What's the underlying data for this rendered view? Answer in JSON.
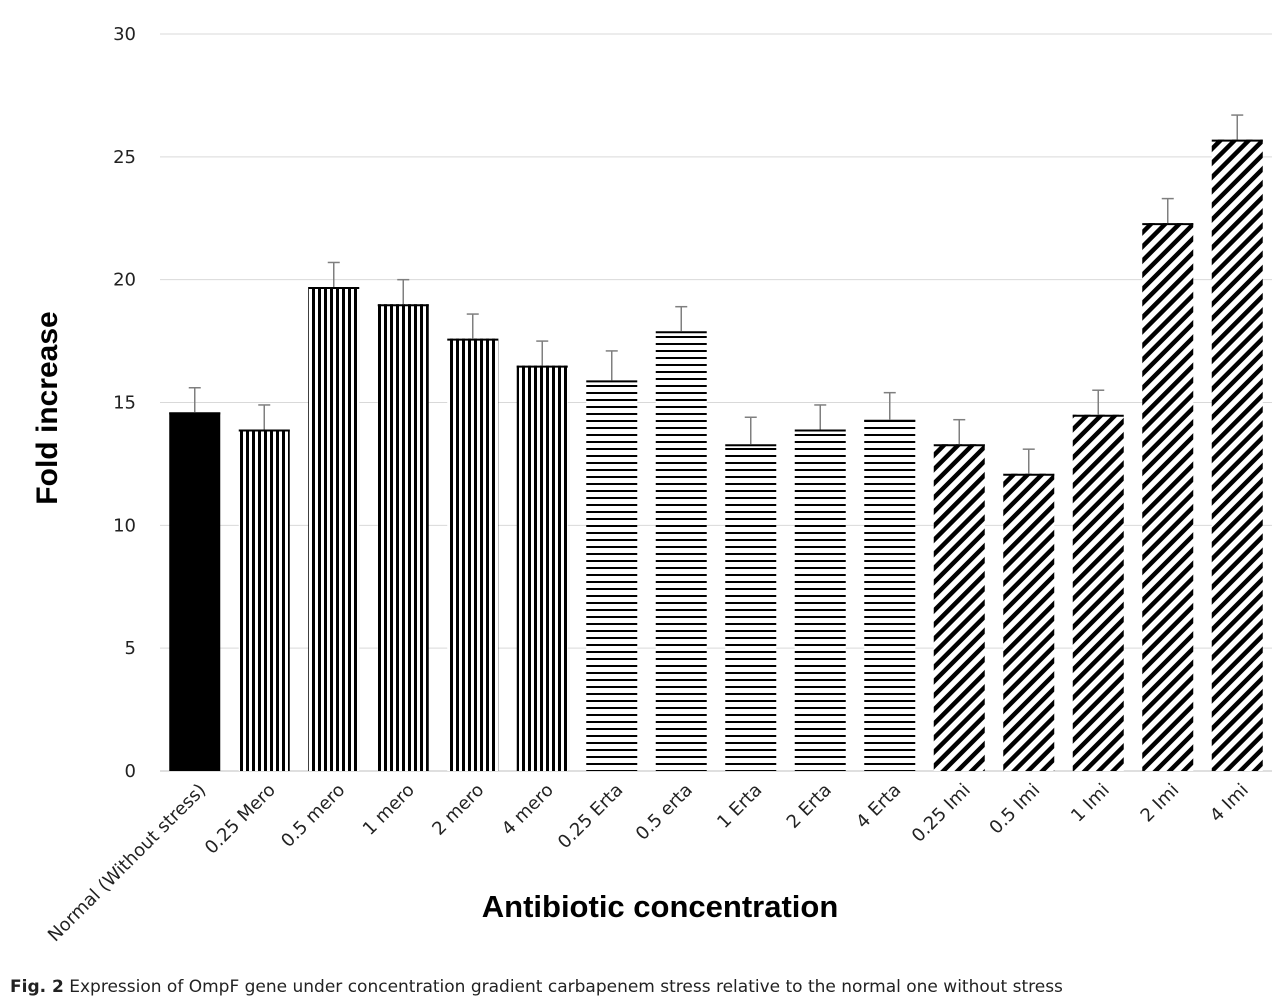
{
  "chart_data": {
    "type": "bar",
    "categories": [
      "Normal (Without stress)",
      "0.25 Mero",
      "0.5 mero",
      "1 mero",
      "2 mero",
      "4 mero",
      "0.25 Erta",
      "0.5 erta",
      "1 Erta",
      "2 Erta",
      "4 Erta",
      "0.25 Imi",
      "0.5 Imi",
      "1 Imi",
      "2 Imi",
      "4 Imi"
    ],
    "values": [
      14.6,
      13.9,
      19.7,
      19.0,
      17.6,
      16.5,
      15.9,
      17.9,
      13.3,
      13.9,
      14.3,
      13.3,
      12.1,
      14.5,
      22.3,
      25.7
    ],
    "errors": [
      1.0,
      1.0,
      1.0,
      1.0,
      1.0,
      1.0,
      1.2,
      1.0,
      1.1,
      1.0,
      1.1,
      1.0,
      1.0,
      1.0,
      1.0,
      1.0
    ],
    "patterns": [
      "solid",
      "vertical",
      "vertical",
      "vertical",
      "vertical",
      "vertical",
      "horizontal",
      "horizontal",
      "horizontal",
      "horizontal",
      "horizontal",
      "diagonal",
      "diagonal",
      "diagonal",
      "diagonal",
      "diagonal"
    ],
    "title": "",
    "xlabel": "Antibiotic concentration",
    "ylabel": "Fold increase",
    "ylim": [
      0,
      30
    ],
    "yticks": [
      0,
      5,
      10,
      15,
      20,
      25,
      30
    ],
    "grid": true,
    "colors": {
      "bar": "#000000",
      "grid": "#d9d9d9",
      "axis": "#bfbfbf",
      "error": "#7f7f7f"
    }
  },
  "caption": {
    "label": "Fig. 2",
    "text": "Expression of OmpF gene under concentration gradient carbapenem stress relative to the normal one without stress"
  }
}
